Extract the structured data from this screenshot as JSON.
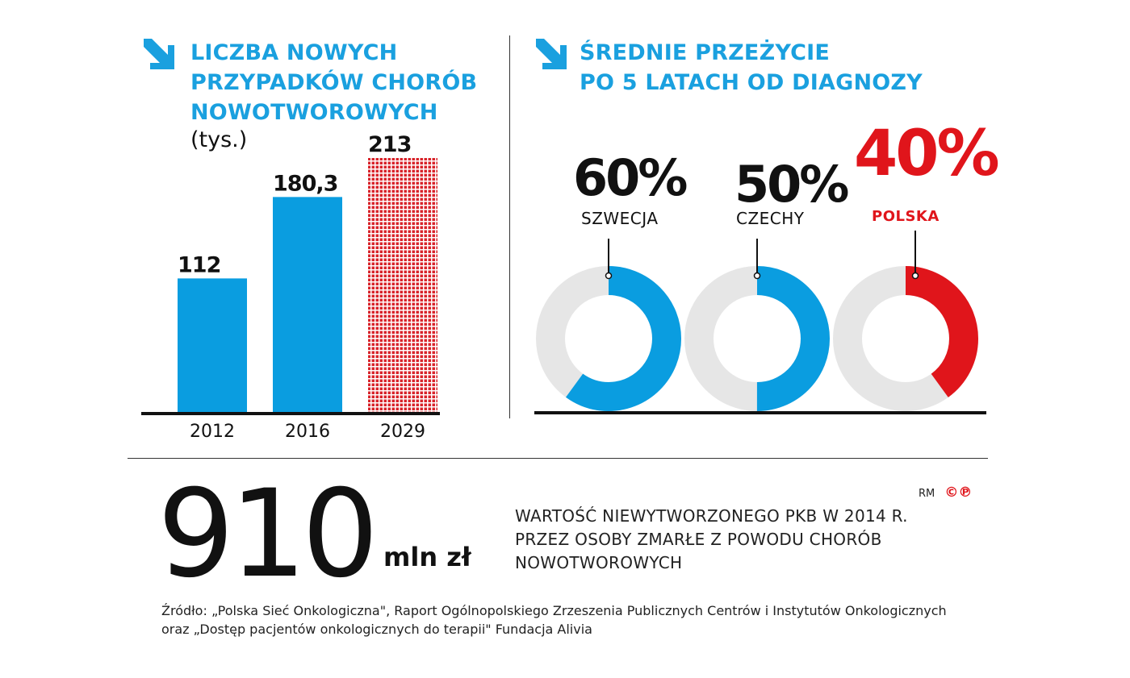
{
  "left": {
    "title_lines": [
      "LICZBA NOWYCH",
      "PRZYPADKÓW CHORÓB",
      "NOWOTWOROWYCH"
    ],
    "unit": "(tys.)"
  },
  "right": {
    "title_lines": [
      "ŚREDNIE PRZEŻYCIE",
      "PO 5 LATACH OD DIAGNOZY"
    ]
  },
  "chart_data": [
    {
      "type": "bar",
      "title": "LICZBA NOWYCH PRZYPADKÓW CHORÓB NOWOTWOROWYCH",
      "ylabel": "(tys.)",
      "categories": [
        "2012",
        "2016",
        "2029"
      ],
      "values": [
        112,
        180.3,
        213
      ],
      "value_labels": [
        "112",
        "180,3",
        "213"
      ],
      "projected": [
        false,
        false,
        true
      ],
      "ylim": [
        0,
        213
      ],
      "colors": {
        "bar": "#0a9de0",
        "projected": "#d8232a"
      },
      "grid": false
    },
    {
      "type": "pie",
      "title": "ŚREDNIE PRZEŻYCIE PO 5 LATACH OD DIAGNOZY",
      "donuts": [
        {
          "label": "SZWECJA",
          "value": 60,
          "value_label": "60%",
          "color": "#0a9de0",
          "highlight": false
        },
        {
          "label": "CZECHY",
          "value": 50,
          "value_label": "50%",
          "color": "#0a9de0",
          "highlight": false
        },
        {
          "label": "POLSKA",
          "value": 40,
          "value_label": "40%",
          "color": "#e0151b",
          "highlight": true
        }
      ],
      "remainder_color": "#e6e6e6"
    }
  ],
  "bottom": {
    "big_number": "910",
    "unit": "mln zł",
    "description_lines": [
      "WARTOŚĆ NIEWYTWORZONEGO PKB W 2014 R.",
      "PRZEZ OSOBY ZMARŁE Z POWODU CHORÓB",
      "NOWOTWOROWYCH"
    ],
    "credits_rm": "RM",
    "credits_cp": "©℗",
    "source_lines": [
      "Źródło: „Polska Sieć Onkologiczna\",  Raport Ogólnopolskiego Zrzeszenia Publicznych Centrów i Instytutów Onkologicznych",
      "oraz „Dostęp pacjentów onkologicznych do terapii\" Fundacja Alivia"
    ]
  },
  "colors": {
    "accent": "#1aa0df",
    "highlight": "#e0151b",
    "text": "#111111"
  }
}
